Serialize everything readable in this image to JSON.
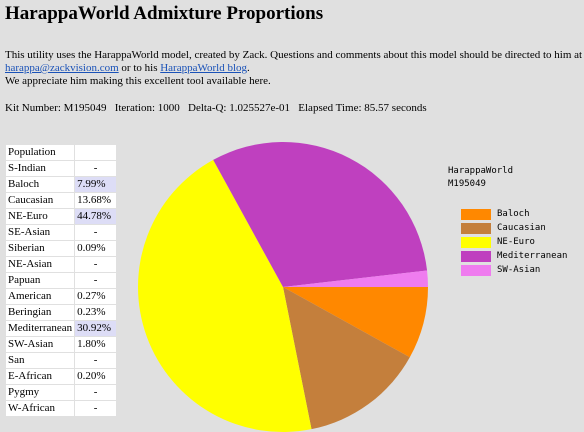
{
  "page": {
    "title": "HarappaWorld Admixture Proportions",
    "intro_part1": "This utility uses the HarappaWorld model, created by Zack. Questions and comments about this model should be directed to him at ",
    "email_link": "harappa@zackvision.com",
    "intro_part2": " or to his ",
    "blog_link": "HarappaWorld blog",
    "intro_part3": ".",
    "appreciation": "We appreciate him making this excellent tool available here.",
    "kit_line": "Kit Number: M195049   Iteration: 1000   Delta-Q: 1.025527e-01   Elapsed Time: 85.57 seconds"
  },
  "table": {
    "header": "Population",
    "rows": [
      {
        "name": "S-Indian",
        "value": "-"
      },
      {
        "name": "Baloch",
        "value": "7.99%"
      },
      {
        "name": "Caucasian",
        "value": "13.68%"
      },
      {
        "name": "NE-Euro",
        "value": "44.78%"
      },
      {
        "name": "SE-Asian",
        "value": "-"
      },
      {
        "name": "Siberian",
        "value": "0.09%"
      },
      {
        "name": "NE-Asian",
        "value": "-"
      },
      {
        "name": "Papuan",
        "value": "-"
      },
      {
        "name": "American",
        "value": "0.27%"
      },
      {
        "name": "Beringian",
        "value": "0.23%"
      },
      {
        "name": "Mediterranean",
        "value": "30.92%"
      },
      {
        "name": "SW-Asian",
        "value": "1.80%"
      },
      {
        "name": "San",
        "value": "-"
      },
      {
        "name": "E-African",
        "value": "0.20%"
      },
      {
        "name": "Pygmy",
        "value": "-"
      },
      {
        "name": "W-African",
        "value": "-"
      }
    ]
  },
  "chart_data": {
    "type": "pie",
    "title_lines": [
      "HarappaWorld",
      "M195049"
    ],
    "legend_position": "right",
    "slices": [
      {
        "label": "Baloch",
        "value": 7.99,
        "color": "#ff8800"
      },
      {
        "label": "Caucasian",
        "value": 13.68,
        "color": "#c47f3c"
      },
      {
        "label": "NE-Euro",
        "value": 44.78,
        "color": "#ffff00"
      },
      {
        "label": "Mediterranean",
        "value": 30.92,
        "color": "#bf40bf"
      },
      {
        "label": "SW-Asian",
        "value": 1.8,
        "color": "#ef7cef"
      }
    ]
  }
}
